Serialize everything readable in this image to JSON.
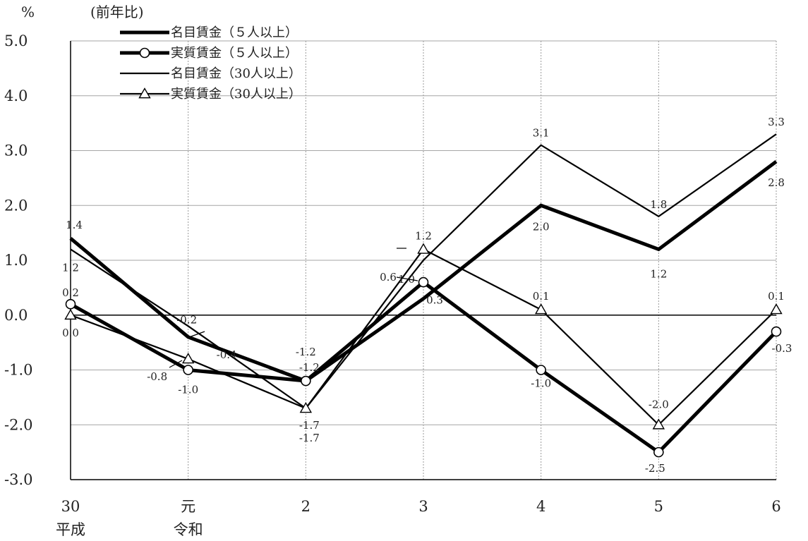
{
  "chart_data": {
    "type": "line",
    "unit_label": "%",
    "subtitle": "(前年比)",
    "ylim": [
      -3.0,
      5.0
    ],
    "y_ticks": [
      5.0,
      4.0,
      3.0,
      2.0,
      1.0,
      0.0,
      -1.0,
      -2.0,
      -3.0
    ],
    "y_tick_labels": [
      "5.0",
      "4.0",
      "3.0",
      "2.0",
      "1.0",
      "0.0",
      "-1.0",
      "-2.0",
      "-3.0"
    ],
    "categories": [
      "30",
      "元",
      "2",
      "3",
      "4",
      "5",
      "6"
    ],
    "era_labels": [
      {
        "index": 0,
        "text": "平成"
      },
      {
        "index": 1,
        "text": "令和"
      }
    ],
    "grid": {
      "horizontal": true,
      "vertical_dotted": true
    },
    "legend_position": "top-left",
    "series": [
      {
        "name": "名目賃金（５人以上）",
        "style": "thick",
        "marker": "none",
        "color": "#000000",
        "values": [
          1.4,
          -0.4,
          -1.2,
          0.3,
          2.0,
          1.2,
          2.8
        ],
        "labels": [
          "1.4",
          "-0.4",
          "-1.2",
          "0.3",
          "2.0",
          "1.2",
          "2.8"
        ]
      },
      {
        "name": "実質賃金（５人以上）",
        "style": "thick",
        "marker": "circle",
        "color": "#000000",
        "values": [
          0.2,
          -1.0,
          -1.2,
          0.6,
          -1.0,
          -2.5,
          -0.3
        ],
        "labels": [
          "0.2",
          "-1.0",
          "-1.2",
          "0.6",
          "-1.0",
          "-2.5",
          "-0.3"
        ]
      },
      {
        "name": "名目賃金（30人以上）",
        "style": "thin",
        "marker": "none",
        "color": "#000000",
        "values": [
          1.2,
          -0.2,
          -1.7,
          1.0,
          3.1,
          1.8,
          3.3
        ],
        "labels": [
          "1.2",
          "-0.2",
          "-1.7",
          "1.0",
          "3.1",
          "1.8",
          "3.3"
        ]
      },
      {
        "name": "実質賃金（30人以上）",
        "style": "thin",
        "marker": "triangle",
        "color": "#000000",
        "values": [
          0.0,
          -0.8,
          -1.7,
          1.2,
          0.1,
          -2.0,
          0.1
        ],
        "labels": [
          "0.0",
          "-0.8",
          "-1.7",
          "1.2",
          "0.1",
          "-2.0",
          "0.1"
        ]
      }
    ]
  }
}
